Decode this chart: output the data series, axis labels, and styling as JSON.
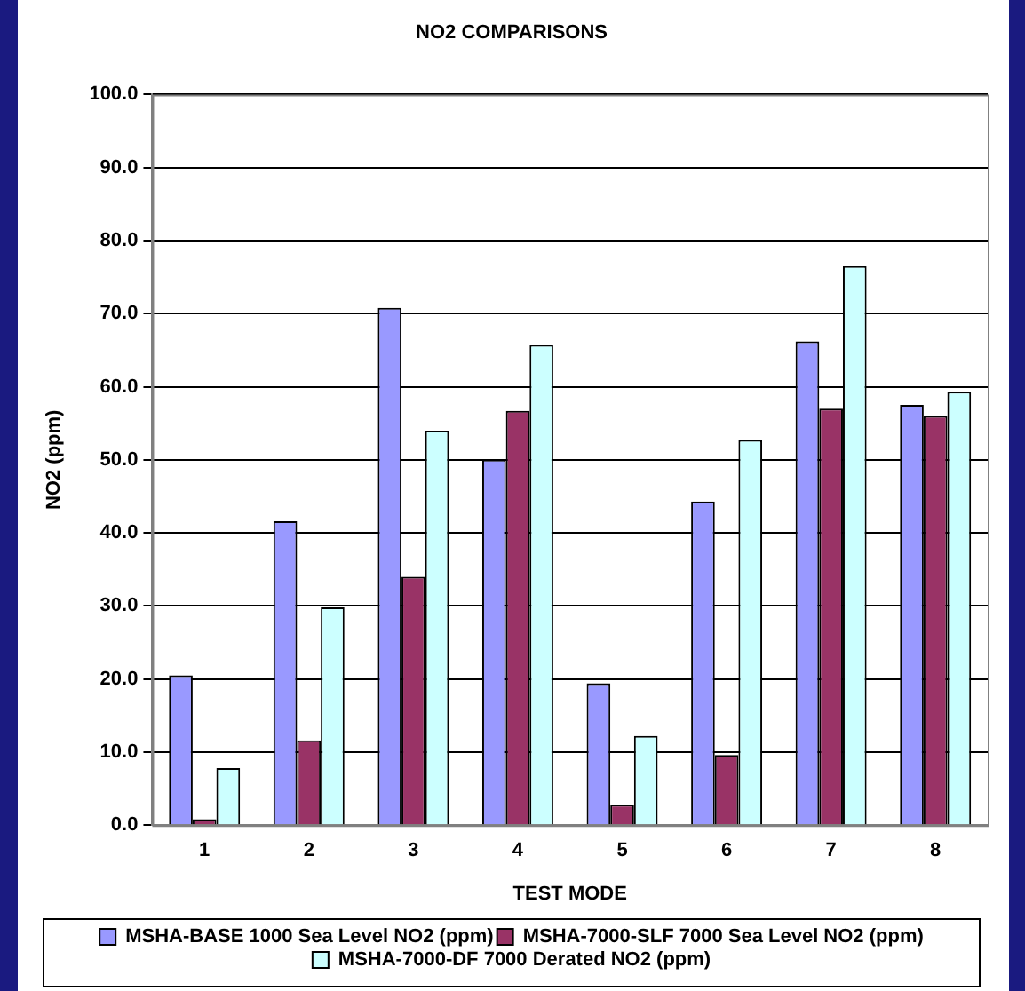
{
  "chart_data": {
    "type": "bar",
    "title": "NO2 COMPARISONS",
    "xlabel": "TEST MODE",
    "ylabel": "NO2 (ppm)",
    "categories": [
      "1",
      "2",
      "3",
      "4",
      "5",
      "6",
      "7",
      "8"
    ],
    "series": [
      {
        "name": "MSHA-BASE 1000 Sea Level NO2 (ppm)",
        "color": "#9999ff",
        "values": [
          20.5,
          41.6,
          70.8,
          50.0,
          19.4,
          44.3,
          66.2,
          57.5
        ]
      },
      {
        "name": "MSHA-7000-SLF 7000 Sea Level NO2 (ppm)",
        "color": "#993366",
        "values": [
          0.8,
          11.6,
          34.0,
          56.7,
          2.8,
          9.6,
          57.0,
          56.0
        ]
      },
      {
        "name": "MSHA-7000-DF 7000 Derated NO2 (ppm)",
        "color": "#ccffff",
        "values": [
          7.8,
          29.8,
          54.0,
          65.7,
          12.2,
          52.7,
          76.5,
          59.3
        ]
      }
    ],
    "ylim": [
      0,
      100
    ],
    "yticks": [
      {
        "value": 0,
        "label": "0.0"
      },
      {
        "value": 10,
        "label": "10.0"
      },
      {
        "value": 20,
        "label": "20.0"
      },
      {
        "value": 30,
        "label": "30.0"
      },
      {
        "value": 40,
        "label": "40.0"
      },
      {
        "value": 50,
        "label": "50.0"
      },
      {
        "value": 60,
        "label": "60.0"
      },
      {
        "value": 70,
        "label": "70.0"
      },
      {
        "value": 80,
        "label": "80.0"
      },
      {
        "value": 90,
        "label": "90.0"
      },
      {
        "value": 100,
        "label": "100.0"
      }
    ],
    "grid": "y",
    "legend": "bottom"
  }
}
